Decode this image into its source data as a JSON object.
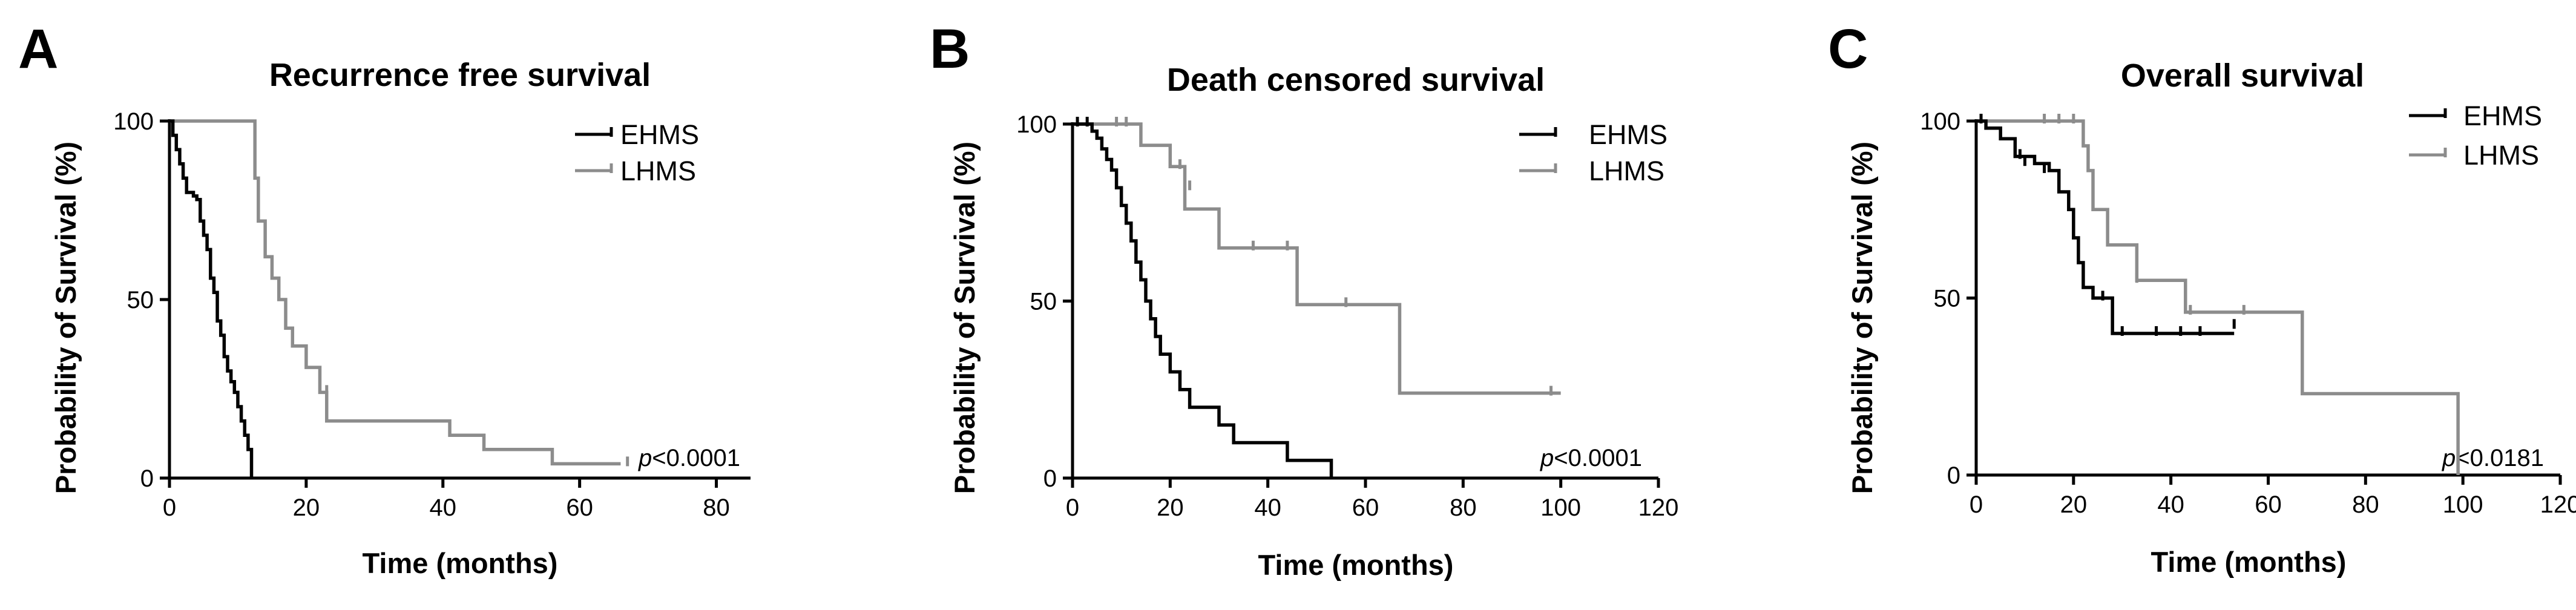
{
  "colors": {
    "EHMS": "#000000",
    "LHMS": "#8c8c8c"
  },
  "chart_data": [
    {
      "type": "line",
      "subtype": "kaplan-meier",
      "panel": "A",
      "title": "Recurrence free survival",
      "xlabel": "Time (months)",
      "ylabel": "Probability of Survival (%)",
      "xlim": [
        0,
        85
      ],
      "ylim": [
        0,
        100
      ],
      "xticks": [
        0,
        20,
        40,
        60,
        80
      ],
      "yticks": [
        0,
        50,
        100
      ],
      "legend": [
        "EHMS",
        "LHMS"
      ],
      "legend_position": "top-right",
      "p_prefix": "p",
      "p_value": "<0.0001",
      "series": [
        {
          "name": "EHMS",
          "x": [
            0,
            0.5,
            1,
            1.5,
            2,
            2.5,
            3,
            3.5,
            4,
            4.5,
            5,
            5.5,
            6,
            6.5,
            7,
            7.5,
            8,
            8.5,
            9,
            9.5,
            10,
            10.5,
            11,
            11.5,
            12
          ],
          "y": [
            100,
            96,
            92,
            88,
            84,
            80,
            80,
            79,
            78,
            72,
            68,
            64,
            56,
            52,
            44,
            40,
            34,
            30,
            27,
            24,
            20,
            16,
            12,
            8,
            0
          ],
          "censored": []
        },
        {
          "name": "LHMS",
          "x": [
            0,
            12.5,
            13,
            14,
            15,
            16,
            17,
            18,
            20,
            22,
            23,
            41,
            46,
            56,
            66
          ],
          "y": [
            100,
            84,
            72,
            62,
            56,
            50,
            42,
            37,
            31,
            24,
            16,
            12,
            8,
            4,
            4
          ],
          "censored": [
            {
              "x": 23,
              "y": 24
            },
            {
              "x": 67,
              "y": 4
            }
          ]
        }
      ]
    },
    {
      "type": "line",
      "subtype": "kaplan-meier",
      "panel": "B",
      "title": "Death censored survival",
      "xlabel": "Time (months)",
      "ylabel": "Probability of Survival (%)",
      "xlim": [
        0,
        120
      ],
      "ylim": [
        0,
        100
      ],
      "xticks": [
        0,
        20,
        40,
        60,
        80,
        100,
        120
      ],
      "yticks": [
        0,
        50,
        100
      ],
      "legend": [
        "EHMS",
        "LHMS"
      ],
      "legend_position": "top-right",
      "p_prefix": "p",
      "p_value": "<0.0001",
      "series": [
        {
          "name": "EHMS",
          "x": [
            0,
            4,
            5,
            6,
            7,
            8,
            9,
            10,
            11,
            12,
            13,
            14,
            15,
            16,
            17,
            18,
            20,
            22,
            24,
            30,
            33,
            44,
            53
          ],
          "y": [
            100,
            98,
            96,
            93,
            90,
            87,
            82,
            77,
            72,
            67,
            61,
            56,
            50,
            45,
            40,
            35,
            30,
            25,
            20,
            15,
            10,
            5,
            0
          ],
          "censored": [
            {
              "x": 1,
              "y": 100
            },
            {
              "x": 3,
              "y": 100
            }
          ]
        },
        {
          "name": "LHMS",
          "x": [
            0,
            14,
            20,
            23,
            30,
            46,
            67,
            100
          ],
          "y": [
            100,
            94,
            88,
            76,
            65,
            49,
            24,
            24
          ],
          "censored": [
            {
              "x": 9,
              "y": 100
            },
            {
              "x": 11,
              "y": 100
            },
            {
              "x": 22,
              "y": 88
            },
            {
              "x": 24,
              "y": 82
            },
            {
              "x": 37,
              "y": 65
            },
            {
              "x": 44,
              "y": 65
            },
            {
              "x": 56,
              "y": 49
            },
            {
              "x": 98,
              "y": 24
            }
          ]
        }
      ]
    },
    {
      "type": "line",
      "subtype": "kaplan-meier",
      "panel": "C",
      "title": "Overall survival",
      "xlabel": "Time (months)",
      "ylabel": "Probability of Survival (%)",
      "xlim": [
        0,
        120
      ],
      "ylim": [
        0,
        100
      ],
      "xticks": [
        0,
        20,
        40,
        60,
        80,
        100,
        120
      ],
      "yticks": [
        0,
        50,
        100
      ],
      "legend": [
        "EHMS",
        "LHMS"
      ],
      "legend_position": "top-right",
      "p_prefix": "p",
      "p_value": "<0.0181",
      "series": [
        {
          "name": "EHMS",
          "x": [
            0,
            2,
            5,
            8,
            12,
            15,
            17,
            19,
            20,
            21,
            22,
            24,
            28,
            53
          ],
          "y": [
            100,
            98,
            95,
            90,
            88,
            86,
            80,
            75,
            67,
            60,
            53,
            50,
            40,
            40
          ],
          "censored": [
            {
              "x": 1,
              "y": 100
            },
            {
              "x": 9,
              "y": 90
            },
            {
              "x": 10,
              "y": 88
            },
            {
              "x": 14,
              "y": 86
            },
            {
              "x": 26,
              "y": 50
            },
            {
              "x": 30,
              "y": 40
            },
            {
              "x": 37,
              "y": 40
            },
            {
              "x": 42,
              "y": 40
            },
            {
              "x": 46,
              "y": 40
            },
            {
              "x": 53,
              "y": 42
            }
          ]
        },
        {
          "name": "LHMS",
          "x": [
            0,
            22,
            23,
            24,
            27,
            33,
            43,
            67,
            98,
            99
          ],
          "y": [
            100,
            93,
            86,
            75,
            65,
            55,
            46,
            23,
            23,
            0
          ],
          "censored": [
            {
              "x": 14,
              "y": 100
            },
            {
              "x": 17,
              "y": 100
            },
            {
              "x": 20,
              "y": 100
            },
            {
              "x": 33,
              "y": 55
            },
            {
              "x": 44,
              "y": 46
            },
            {
              "x": 55,
              "y": 46
            }
          ]
        }
      ]
    }
  ]
}
